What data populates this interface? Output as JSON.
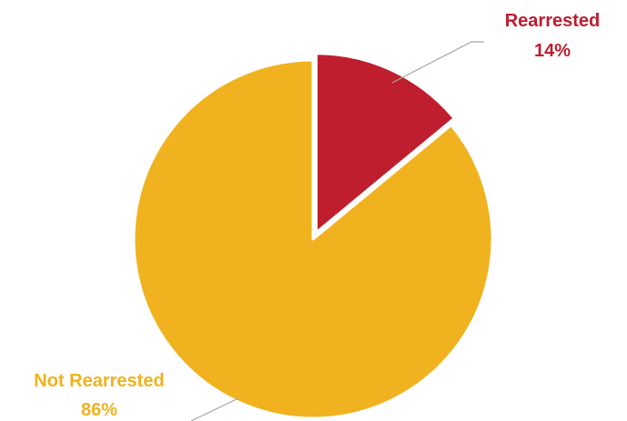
{
  "chart_data": {
    "type": "pie",
    "title": "",
    "series": [
      {
        "slices": [
          {
            "name": "Rearrested",
            "value": 14,
            "label": "Rearrested",
            "percent_label": "14%",
            "color": "#BE1E2D"
          },
          {
            "name": "Not Rearrested",
            "value": 86,
            "label": "Not Rearrested",
            "percent_label": "86%",
            "color": "#F0B21E"
          }
        ]
      }
    ],
    "start_angle_deg": 0,
    "direction": "clockwise",
    "legend": "none",
    "leader_line_color": "#A6A6A6",
    "exploded_slice": "Rearrested"
  }
}
